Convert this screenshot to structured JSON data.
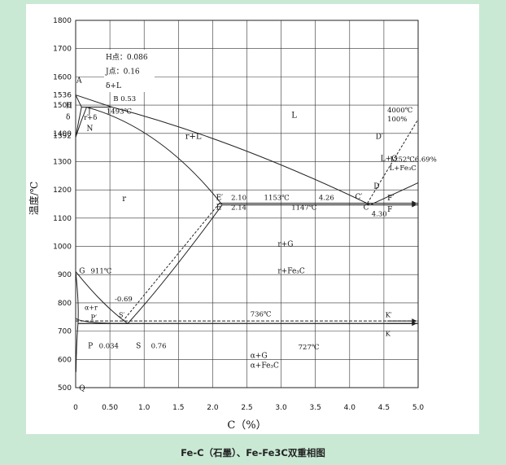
{
  "caption": "Fe-C（石墨）、Fe-Fe3C双重相图",
  "chart_data": {
    "type": "diagram",
    "xlabel": "C（%）",
    "ylabel": "温度/℃",
    "xlim": [
      0,
      5.0
    ],
    "ylim": [
      500,
      1800
    ],
    "x_ticks": [
      "0",
      "0.50",
      "1.0",
      "1.5",
      "2.0",
      "2.5",
      "3.0",
      "3.5",
      "4.0",
      "4.5",
      "5.0"
    ],
    "y_ticks": [
      "500",
      "600",
      "700",
      "800",
      "900",
      "1000",
      "1100",
      "1200",
      "1300",
      "1400",
      "1500",
      "1600",
      "1700",
      "1800"
    ],
    "extra_y_labels": [
      "1536",
      "1392"
    ],
    "info_box": [
      "H点：0.086",
      "J点：0.16",
      "δ+L"
    ],
    "annotations": {
      "point_A": "A",
      "point_H": "H",
      "point_B": "B 0.53",
      "point_J": "J",
      "label_1493": "1493℃",
      "delta": "δ",
      "delta_gamma": "r+δ",
      "point_N": "N",
      "region_L": "L",
      "region_gamma_L": "r+L",
      "region_gamma": "r",
      "E_prime": "E′",
      "E": "E",
      "val_210": "2.10",
      "val_214": "2.14",
      "temp_1153": "1153℃",
      "temp_1147": "1147℃",
      "val_426": "4.26",
      "C_prime": "C′",
      "C": "C",
      "val_430": "4.30",
      "D_prime": "D′",
      "D": "D",
      "temp_4000": "4000℃",
      "pct_100": "100%",
      "temp_1252": "1252℃6.69%",
      "L_Fe3C": "L+Fe₃C",
      "L_G": "L+G",
      "F_prime": "F′",
      "F": "F",
      "gamma_G": "r+G",
      "gamma_Fe3C": "r+Fe₃C",
      "point_G": "G",
      "temp_911": "911℃",
      "val_069": "-0.69",
      "S_prime": "S′",
      "alpha_gamma": "α+r",
      "P_prime": "P′",
      "temp_736": "736℃",
      "K_prime": "K′",
      "K": "K",
      "point_P": "P",
      "val_0034": "0.034",
      "point_S": "S",
      "val_076": "0.76",
      "temp_727": "727℃",
      "alpha_G": "α+G",
      "alpha_Fe3C": "α+Fe₃C",
      "point_Q": "Q"
    }
  }
}
